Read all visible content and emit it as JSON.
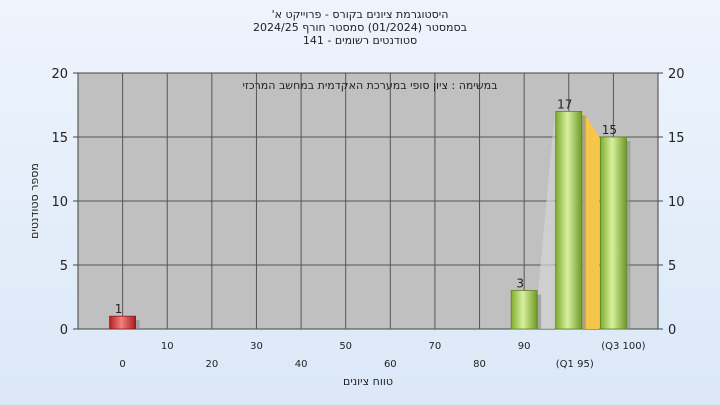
{
  "chart_data": {
    "type": "bar",
    "title_lines": [
      "היסטוגרמת ציונים בקורס - פרוייקט א'",
      "בסמסטר  (01/2024)  סמסטר חורף 2024/25",
      "סטודנטים רשומים - 141"
    ],
    "annotation": "במשימה : ציון סופי במערכת האקדמית במחשב המרכזי",
    "xlabel": "טווח ציונים",
    "ylabel": "מספר סטודנטים",
    "ylim": [
      0,
      20
    ],
    "yticks": [
      0,
      5,
      10,
      15,
      20
    ],
    "x_ticks_upper": [
      "10",
      "30",
      "50",
      "70",
      "90",
      "(Q3 100)"
    ],
    "x_ticks_lower": [
      "0",
      "20",
      "40",
      "60",
      "80",
      "(Q1 95)"
    ],
    "bars": [
      {
        "x": 0,
        "value": 1,
        "label": "1",
        "color": "red"
      },
      {
        "x": 90,
        "value": 3,
        "label": "3",
        "color": "green"
      },
      {
        "x": 95,
        "value": 17,
        "label": "17",
        "color": "green"
      },
      {
        "x": 100,
        "value": 15,
        "label": "15",
        "color": "green"
      }
    ],
    "colors": {
      "plot_bg": "#c0c0c0",
      "grid": "#555555",
      "red_bar": "#d83a3a",
      "green_bar": "#9ccc4a",
      "quartile_band": "#f7c54a"
    }
  }
}
